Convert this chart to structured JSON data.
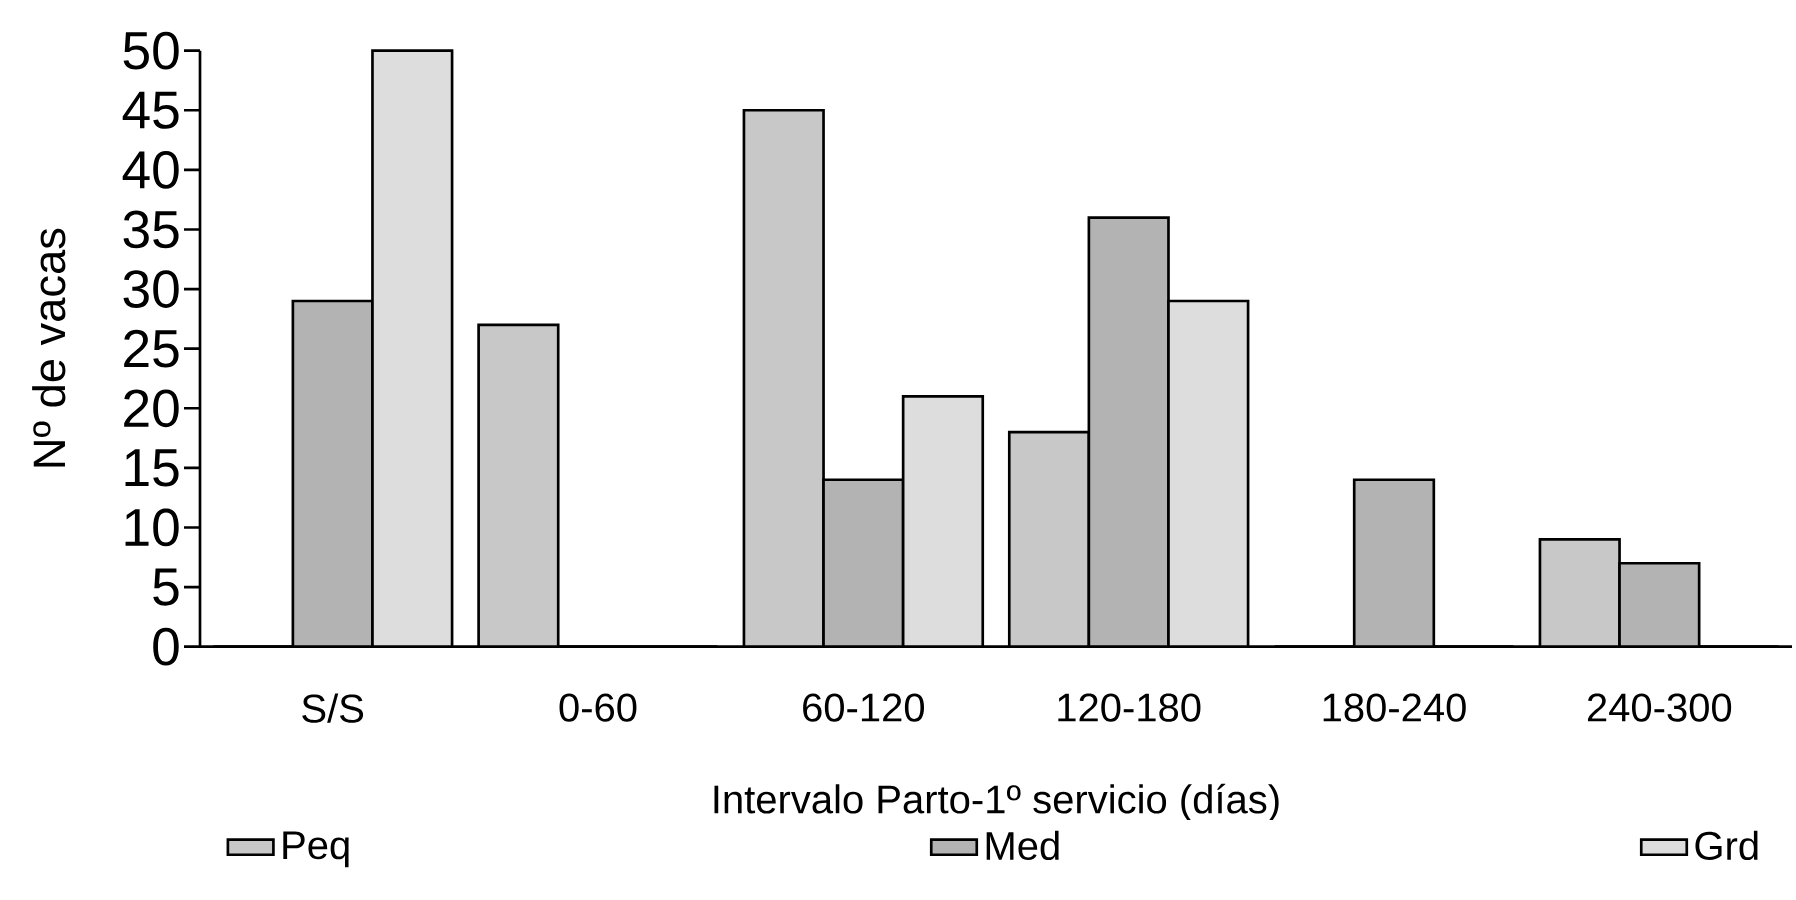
{
  "chart_data": {
    "type": "bar",
    "xlabel": "Intervalo Parto-1º servicio (días)",
    "ylabel": "Nº de vacas",
    "categories": [
      "S/S",
      "0-60",
      "60-120",
      "120-180",
      "180-240",
      "240-300"
    ],
    "series": [
      {
        "name": "Peq",
        "color": "#c8c8c8",
        "values": [
          0,
          27,
          45,
          18,
          0,
          9
        ]
      },
      {
        "name": "Med",
        "color": "#b3b3b3",
        "values": [
          29,
          0,
          14,
          36,
          14,
          7
        ]
      },
      {
        "name": "Grd",
        "color": "#dddddd",
        "values": [
          50,
          0,
          21,
          29,
          0,
          0
        ]
      }
    ],
    "ylim": [
      0,
      50
    ],
    "yticks": [
      0,
      5,
      10,
      15,
      20,
      25,
      30,
      35,
      40,
      45,
      50
    ],
    "legend": "bottom",
    "grid": false
  }
}
